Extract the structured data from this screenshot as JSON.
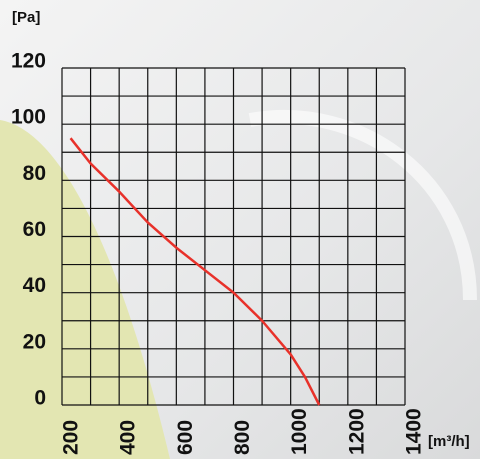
{
  "chart_data": {
    "type": "line",
    "y_label": "[Pa]",
    "x_label": "[m³/h]",
    "x": [
      230,
      300,
      400,
      500,
      600,
      700,
      800,
      900,
      1000,
      1050,
      1100
    ],
    "series": [
      {
        "color": "#e8312a",
        "values": [
          95,
          86,
          76,
          65,
          56,
          48,
          40,
          30,
          18,
          10,
          0
        ]
      }
    ],
    "xlim": [
      200,
      1400
    ],
    "ylim": [
      0,
      120
    ],
    "xticks": [
      200,
      400,
      600,
      800,
      1000,
      1200,
      1400
    ],
    "yticks": [
      0,
      20,
      40,
      60,
      80,
      100,
      120
    ],
    "x_grid": [
      200,
      300,
      400,
      500,
      600,
      700,
      800,
      900,
      1000,
      1100,
      1200,
      1300,
      1400
    ],
    "y_grid": [
      0,
      10,
      20,
      30,
      40,
      50,
      60,
      70,
      80,
      90,
      100,
      110,
      120
    ],
    "grid": true
  }
}
